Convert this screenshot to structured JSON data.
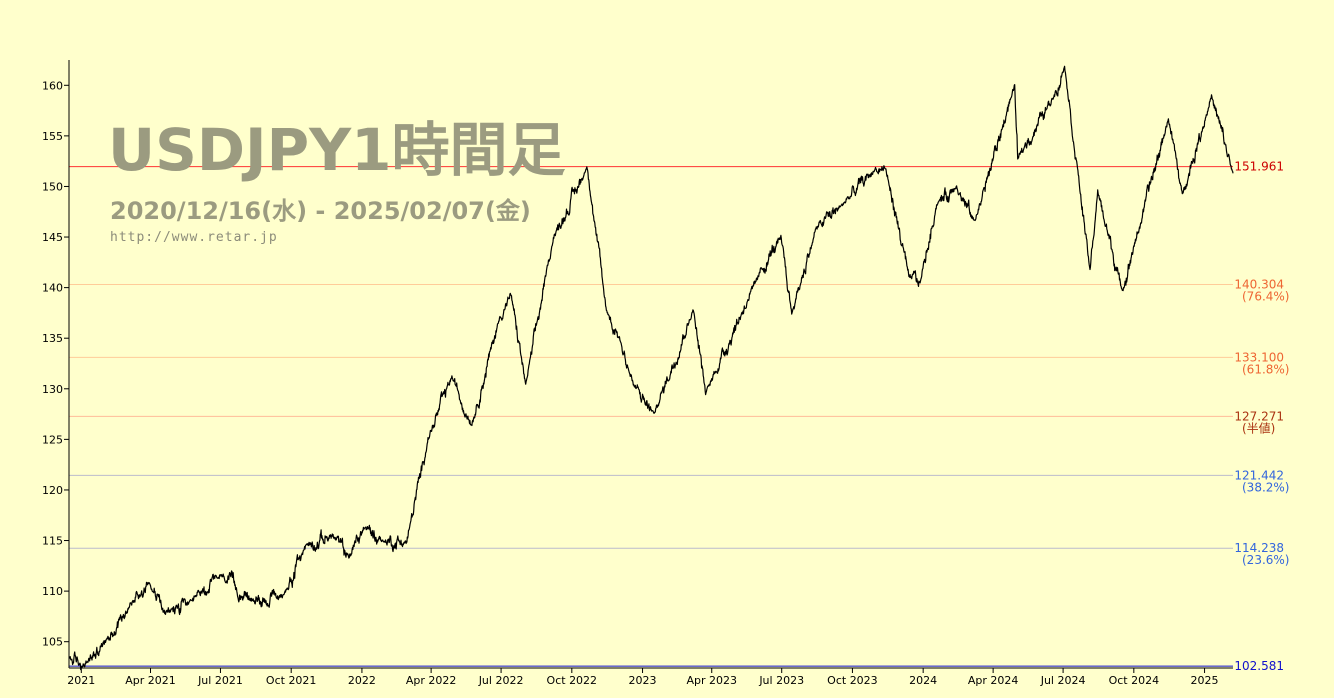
{
  "title": "USDJPY1時間足",
  "subtitle": "2020/12/16(水) - 2025/02/07(金)",
  "url": "http://www.retar.jp",
  "chart_data": {
    "type": "line",
    "x_ticks": [
      "2021",
      "Apr 2021",
      "Jul 2021",
      "Oct 2021",
      "2022",
      "Apr 2022",
      "Jul 2022",
      "Oct 2022",
      "2023",
      "Apr 2023",
      "Jul 2023",
      "Oct 2023",
      "2024",
      "Apr 2024",
      "Jul 2024",
      "Oct 2024",
      "2025"
    ],
    "y_ticks": [
      "105",
      "110",
      "115",
      "120",
      "125",
      "130",
      "135",
      "140",
      "145",
      "150",
      "155",
      "160"
    ],
    "ylim": [
      102.4,
      162.5
    ],
    "series": [
      {
        "x": [
          "2020-12-16",
          "2021-01-05",
          "2021-02-01",
          "2021-03-05",
          "2021-03-31",
          "2021-04-20",
          "2021-05-25",
          "2021-07-02",
          "2021-08-10",
          "2021-09-20",
          "2021-10-20",
          "2021-11-24",
          "2021-12-15",
          "2022-01-04",
          "2022-01-28",
          "2022-02-28",
          "2022-03-28",
          "2022-04-28",
          "2022-05-24",
          "2022-06-29",
          "2022-07-14",
          "2022-08-02",
          "2022-09-07",
          "2022-10-21",
          "2022-11-15",
          "2022-12-02",
          "2022-12-20",
          "2023-01-16",
          "2023-03-08",
          "2023-03-24",
          "2023-05-30",
          "2023-06-30",
          "2023-07-14",
          "2023-08-15",
          "2023-09-15",
          "2023-10-31",
          "2023-11-13",
          "2023-12-14",
          "2023-12-28",
          "2024-01-19",
          "2024-02-13",
          "2024-03-08",
          "2024-04-29",
          "2024-05-03",
          "2024-06-20",
          "2024-07-03",
          "2024-08-05",
          "2024-08-15",
          "2024-09-16",
          "2024-10-01",
          "2024-11-15",
          "2024-12-03",
          "2025-01-10",
          "2025-02-07"
        ],
        "values": [
          103.4,
          102.6,
          105.0,
          108.6,
          110.9,
          107.8,
          109.0,
          111.6,
          109.1,
          109.5,
          114.5,
          115.5,
          113.4,
          116.3,
          115.0,
          114.8,
          125.0,
          131.2,
          126.4,
          137.0,
          139.3,
          130.4,
          144.9,
          151.9,
          137.7,
          135.0,
          130.4,
          127.5,
          137.8,
          129.6,
          140.9,
          145.0,
          137.5,
          145.9,
          148.0,
          151.7,
          151.8,
          141.0,
          140.5,
          148.3,
          150.0,
          146.5,
          160.0,
          152.8,
          159.0,
          161.9,
          141.7,
          149.5,
          139.6,
          144.0,
          156.7,
          149.2,
          158.9,
          151.3
        ]
      }
    ],
    "levels": [
      {
        "value": 151.961,
        "label": "151.961",
        "sub": "",
        "color": "#ff3333",
        "label_color": "#cc0000"
      },
      {
        "value": 140.304,
        "label": "140.304",
        "sub": "(76.4%)",
        "color": "#ffcc99",
        "label_color": "#ee6633"
      },
      {
        "value": 133.1,
        "label": "133.100",
        "sub": "(61.8%)",
        "color": "#ffcc99",
        "label_color": "#ee6633"
      },
      {
        "value": 127.271,
        "label": "127.271",
        "sub": "(半値)",
        "color": "#ffbb99",
        "label_color": "#aa3311"
      },
      {
        "value": 121.442,
        "label": "121.442",
        "sub": "(38.2%)",
        "color": "#bbbbcc",
        "label_color": "#3366dd"
      },
      {
        "value": 114.238,
        "label": "114.238",
        "sub": "(23.6%)",
        "color": "#bbbbcc",
        "label_color": "#3366dd"
      },
      {
        "value": 102.581,
        "label": "102.581",
        "sub": "",
        "color": "#1111cc",
        "label_color": "#1111cc"
      }
    ],
    "line_color": "#000000",
    "grid": false
  }
}
